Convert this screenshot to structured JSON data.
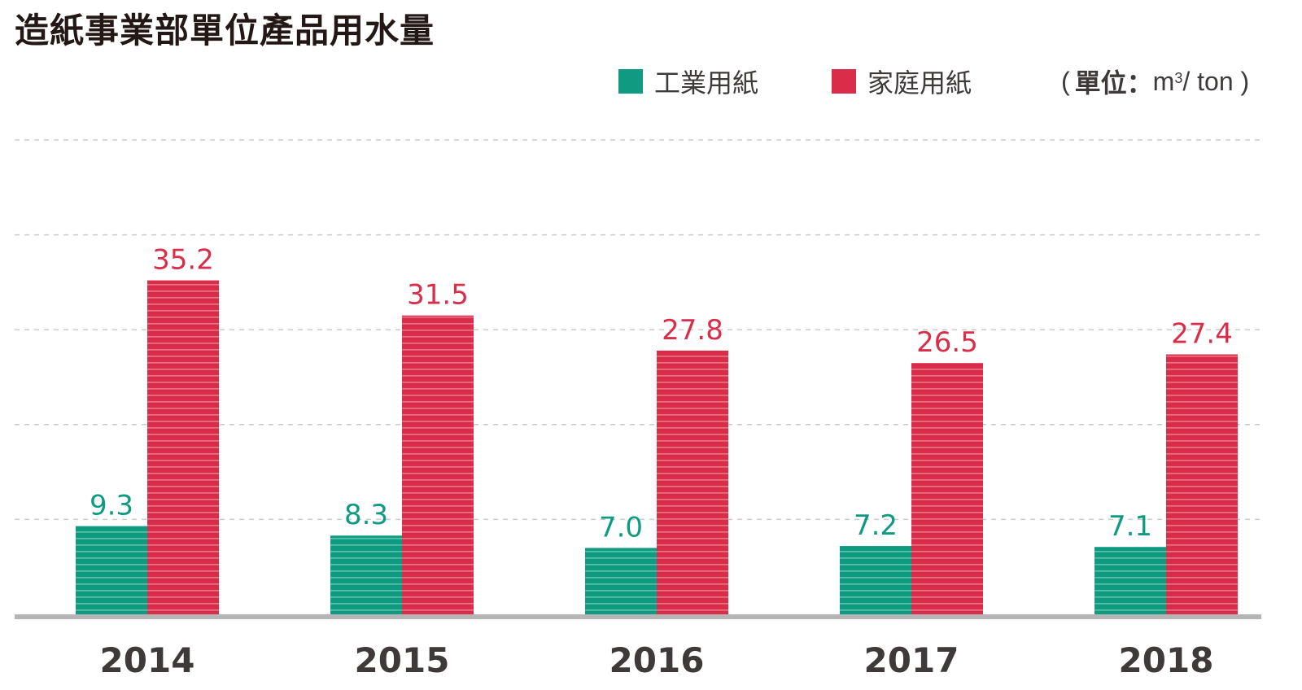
{
  "chart_data": {
    "type": "bar",
    "title": "造紙事業部單位產品用水量",
    "unit": {
      "open": "(",
      "label": "單位：",
      "base": "m",
      "exp": "3",
      "rest": " / ton )"
    },
    "categories": [
      "2014",
      "2015",
      "2016",
      "2017",
      "2018"
    ],
    "series": [
      {
        "name": "工業用紙",
        "color": "#0e9b81",
        "values": [
          9.3,
          8.3,
          7.0,
          7.2,
          7.1
        ]
      },
      {
        "name": "家庭用紙",
        "color": "#d92d49",
        "values": [
          35.2,
          31.5,
          27.8,
          26.5,
          27.4
        ]
      }
    ],
    "ylim": [
      0,
      50
    ],
    "grid": true,
    "legend_position": "top-right"
  }
}
